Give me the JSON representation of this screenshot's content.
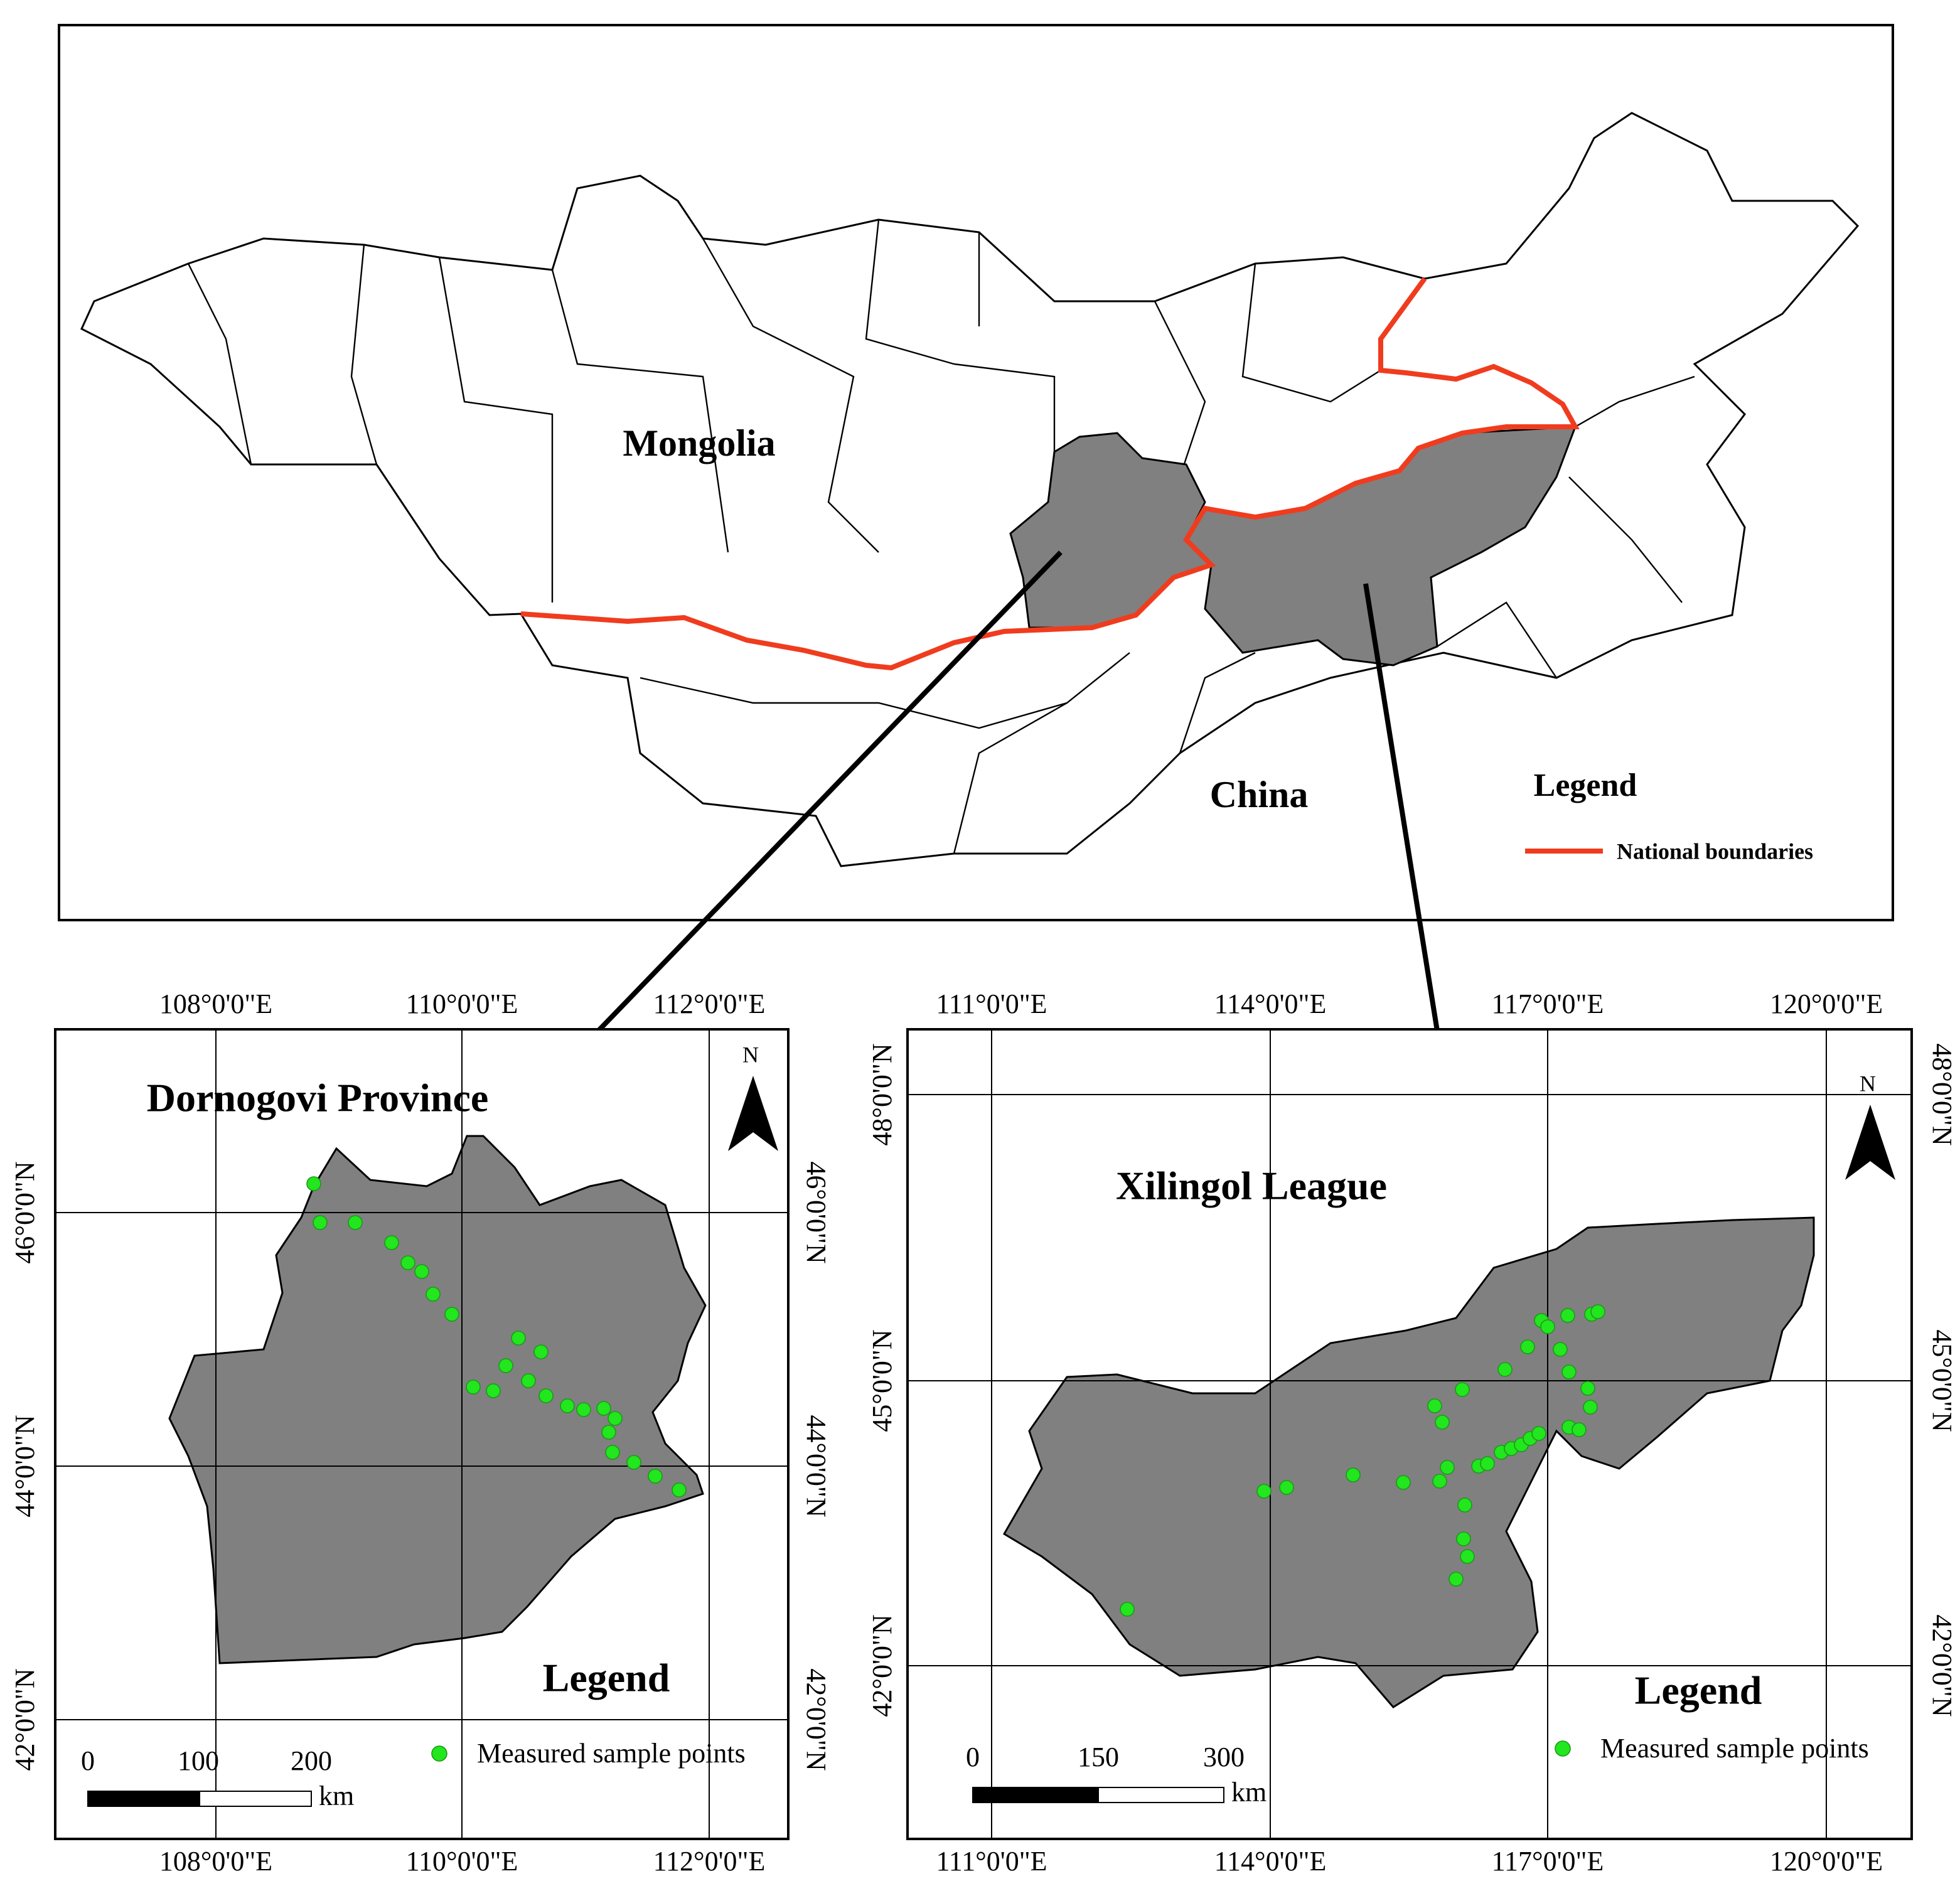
{
  "overview": {
    "labels": [
      "Mongolia",
      "China"
    ],
    "legend": {
      "title": "Legend",
      "items": [
        "National boundaries"
      ]
    }
  },
  "panels": [
    {
      "title": "Dornogovi Province",
      "north": "N",
      "x_ticks": [
        "108°0'0\"E",
        "110°0'0\"E",
        "112°0'0\"E"
      ],
      "y_ticks": [
        "46°0'0\"N",
        "44°0'0\"N",
        "42°0'0\"N"
      ],
      "scale": {
        "labels": [
          "0",
          "100",
          "200"
        ],
        "unit": "km"
      },
      "legend": {
        "title": "Legend",
        "items": [
          "Measured sample points"
        ]
      }
    },
    {
      "title": "Xilingol League",
      "north": "N",
      "x_ticks": [
        "111°0'0\"E",
        "114°0'0\"E",
        "117°0'0\"E",
        "120°0'0\"E"
      ],
      "y_ticks": [
        "48°0'0\"N",
        "45°0'0\"N",
        "42°0'0\"N"
      ],
      "scale": {
        "labels": [
          "0",
          "150",
          "300"
        ],
        "unit": "km"
      },
      "legend": {
        "title": "Legend",
        "items": [
          "Measured sample points"
        ]
      }
    }
  ]
}
